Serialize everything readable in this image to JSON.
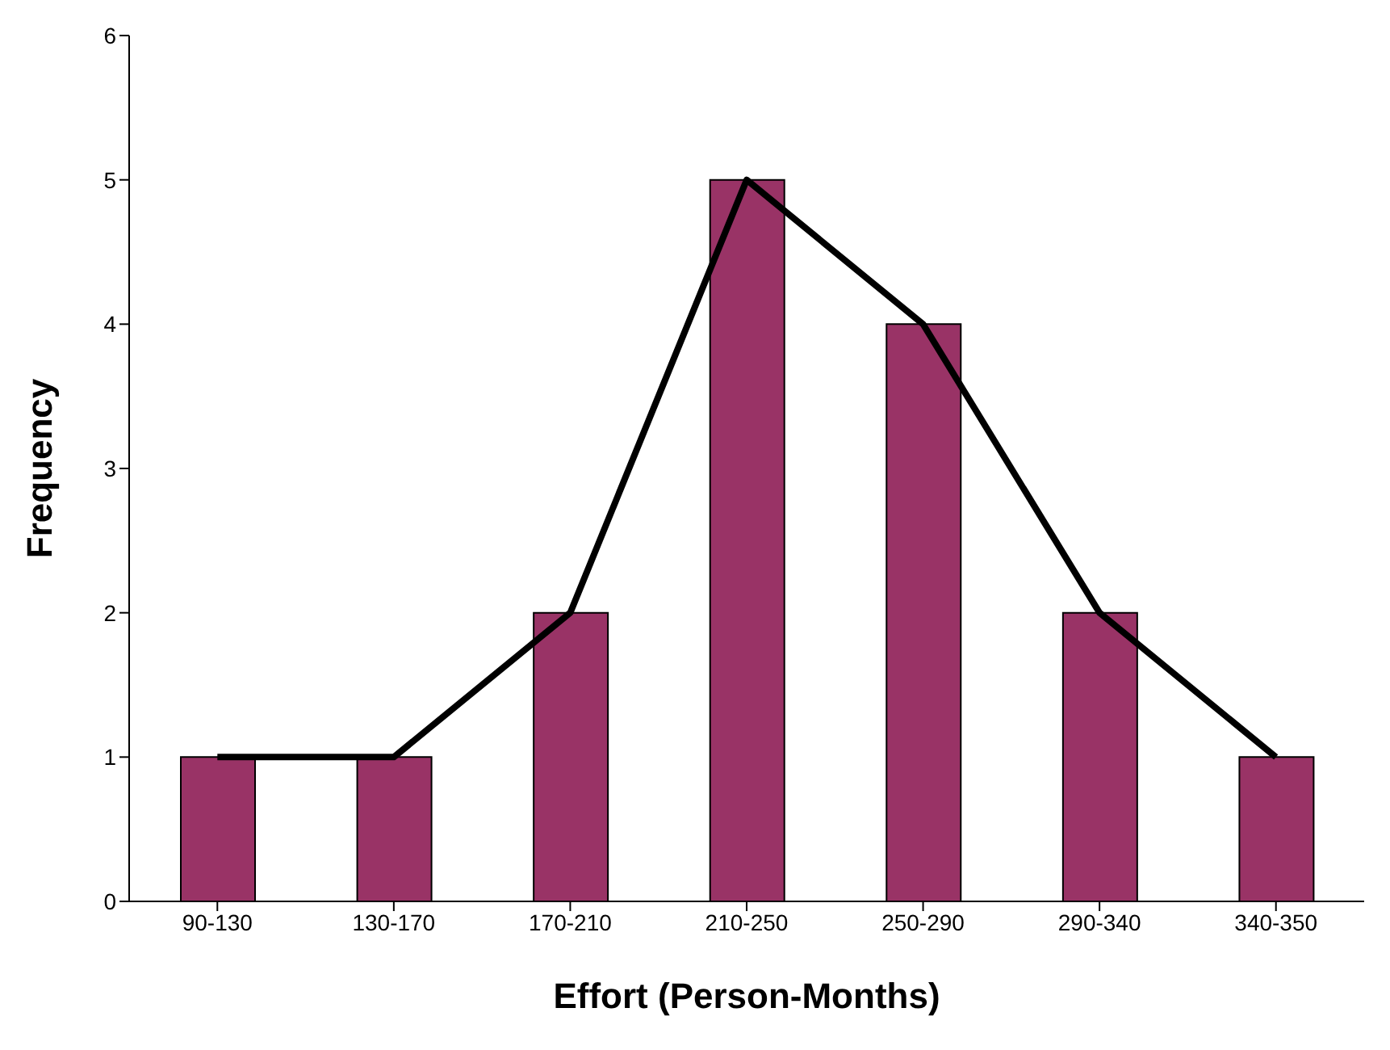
{
  "chart_data": {
    "type": "bar",
    "xlabel": "Effort (Person-Months)",
    "ylabel": "Frequency",
    "categories": [
      "90-130",
      "130-170",
      "170-210",
      "210-250",
      "250-290",
      "290-340",
      "340-350"
    ],
    "series": [
      {
        "color": "#993366",
        "values": [
          1,
          1,
          2,
          5,
          4,
          2,
          1
        ]
      },
      {
        "type": "line",
        "color": "#000000",
        "values": [
          1,
          1,
          2,
          5,
          4,
          2,
          1
        ]
      }
    ],
    "ylim": [
      0,
      6
    ],
    "yticks": [
      0,
      1,
      2,
      3,
      4,
      5,
      6
    ],
    "grid": false,
    "legend": false,
    "marker": "none",
    "line_style": "solid"
  }
}
